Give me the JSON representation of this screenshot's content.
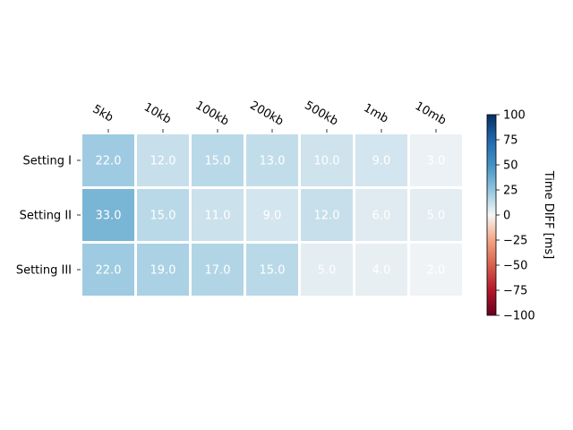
{
  "chart_data": {
    "type": "heatmap",
    "title": "",
    "columns": [
      "5kb",
      "10kb",
      "100kb",
      "200kb",
      "500kb",
      "1mb",
      "10mb"
    ],
    "rows": [
      "Setting I",
      "Setting II",
      "Setting III"
    ],
    "values": [
      [
        22.0,
        12.0,
        15.0,
        13.0,
        10.0,
        9.0,
        3.0
      ],
      [
        33.0,
        15.0,
        11.0,
        9.0,
        12.0,
        6.0,
        5.0
      ],
      [
        22.0,
        19.0,
        17.0,
        15.0,
        5.0,
        4.0,
        2.0
      ]
    ],
    "value_labels": [
      [
        "22.0",
        "12.0",
        "15.0",
        "13.0",
        "10.0",
        "9.0",
        "3.0"
      ],
      [
        "33.0",
        "15.0",
        "11.0",
        "9.0",
        "12.0",
        "6.0",
        "5.0"
      ],
      [
        "22.0",
        "19.0",
        "17.0",
        "15.0",
        "5.0",
        "4.0",
        "2.0"
      ]
    ],
    "colormap": "RdBu",
    "vmin": -100,
    "vmax": 100,
    "colorbar": {
      "label": "Time DIFF [ms]",
      "ticks": [
        100,
        75,
        50,
        25,
        0,
        -25,
        -50,
        -75,
        -100
      ],
      "tick_labels": [
        "100",
        "75",
        "50",
        "25",
        "0",
        "−25",
        "−50",
        "−75",
        "−100"
      ]
    },
    "x_axis_position": "top",
    "annotation_color": "#ffffff"
  }
}
